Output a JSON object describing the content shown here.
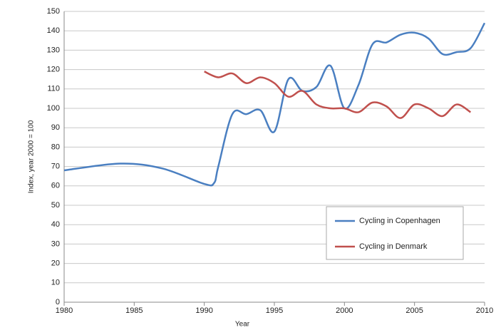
{
  "chart_data": {
    "type": "line",
    "xlabel": "Year",
    "ylabel": "Index, year 2000 = 100",
    "xlim": [
      1980,
      2010
    ],
    "xticks": [
      1980,
      1985,
      1990,
      1995,
      2000,
      2005,
      2010
    ],
    "ylim": [
      0,
      150
    ],
    "yticks": [
      0,
      10,
      20,
      30,
      40,
      50,
      60,
      70,
      80,
      90,
      100,
      110,
      120,
      130,
      140,
      150
    ],
    "grid": true,
    "legend": "lower right",
    "series": [
      {
        "name": "Cycling in Copenhagen",
        "color": "#4a7fc1",
        "x": [
          1980,
          1984,
          1987,
          1990,
          1990.7,
          1991,
          1992,
          1993,
          1994,
          1995,
          1996,
          1997,
          1998,
          1999,
          2000,
          2001,
          2002,
          2003,
          2004,
          2005,
          2006,
          2007,
          2008,
          2009,
          2010
        ],
        "values": [
          68,
          71.5,
          69,
          61,
          61.5,
          70,
          97,
          97,
          99,
          88,
          115,
          109,
          111,
          122,
          100,
          112,
          133,
          134,
          138,
          139,
          136,
          128,
          129,
          131,
          144
        ]
      },
      {
        "name": "Cycling in Denmark",
        "color": "#c0504d",
        "x": [
          1990,
          1991,
          1992,
          1993,
          1994,
          1995,
          1996,
          1997,
          1998,
          1999,
          2000,
          2001,
          2002,
          2003,
          2004,
          2005,
          2006,
          2007,
          2008,
          2009
        ],
        "values": [
          119,
          116,
          118,
          113,
          116,
          113,
          106,
          109,
          102,
          100,
          100,
          98,
          103,
          101,
          95,
          102,
          100,
          96,
          102,
          98
        ]
      }
    ]
  }
}
